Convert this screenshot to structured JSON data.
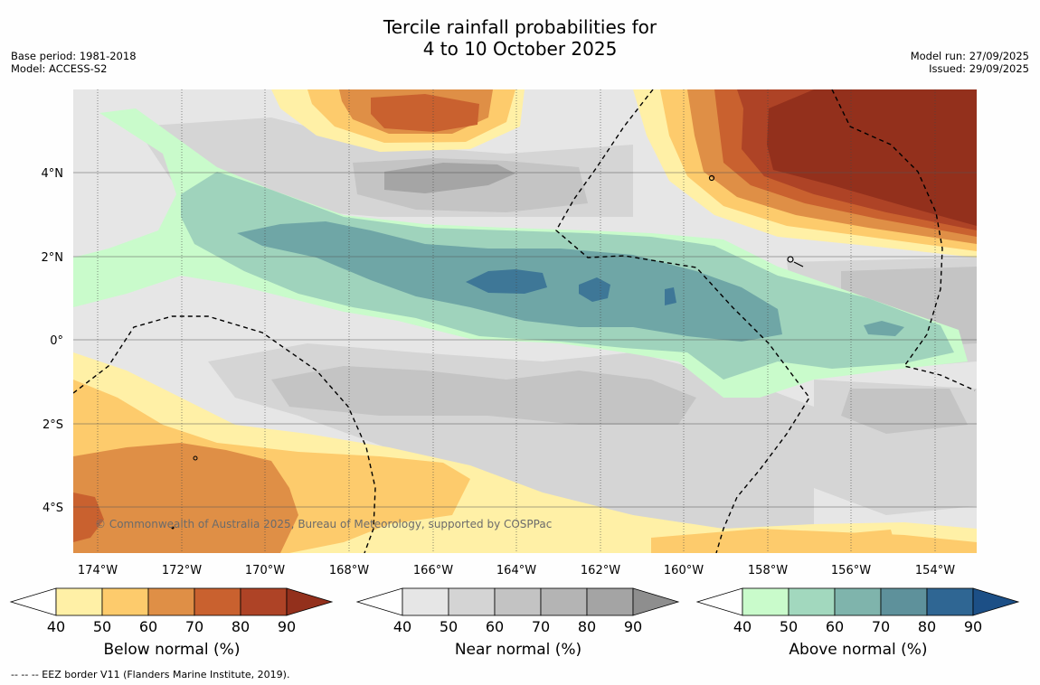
{
  "title_line1": "Tercile rainfall probabilities for",
  "title_line2": "4 to 10 October 2025",
  "base_period": "Base period: 1981-2018",
  "model": "Model: ACCESS-S2",
  "model_run": "Model run: 27/09/2025",
  "issued": "Issued: 29/09/2025",
  "copyright": "© Commonwealth of Australia 2025, Bureau of Meteorology, supported by COSPPac",
  "footnote": "--  --  -- EEZ border V11 (Flanders Marine Institute, 2019).",
  "x_ticks": [
    "174°W",
    "172°W",
    "170°W",
    "168°W",
    "166°W",
    "164°W",
    "162°W",
    "160°W",
    "158°W",
    "156°W",
    "154°W"
  ],
  "y_ticks": [
    "4°N",
    "2°N",
    "0°",
    "2°S",
    "4°S"
  ],
  "colorbars": [
    {
      "caption": "Below normal (%)",
      "ticks": [
        "40",
        "50",
        "60",
        "70",
        "80",
        "90"
      ],
      "colors": [
        "#fff0a6",
        "#fdcb6c",
        "#df8f46",
        "#c9612f",
        "#ae4326",
        "#93301c"
      ]
    },
    {
      "caption": "Near normal (%)",
      "ticks": [
        "40",
        "50",
        "60",
        "70",
        "80",
        "90"
      ],
      "colors": [
        "#e6e6e6",
        "#d4d4d4",
        "#c3c3c3",
        "#b4b4b4",
        "#a4a4a4",
        "#8e8e8e"
      ]
    },
    {
      "caption": "Above normal (%)",
      "ticks": [
        "40",
        "50",
        "60",
        "70",
        "80",
        "90"
      ],
      "colors": [
        "#c9fbcb",
        "#a2d8be",
        "#7fb4ac",
        "#5e919b",
        "#2f6693",
        "#1c4f86"
      ]
    }
  ],
  "map_colors": {
    "near_40": "#e6e6e6",
    "near_50": "#d5d5d5",
    "near_60": "#c4c4c4",
    "near_80": "#a5a5a5",
    "above_40": "#c9fbcb",
    "above_50": "#9fd3bc",
    "above_60": "#6fa6a6",
    "above_70": "#3e7797",
    "below_40": "#fff0a6",
    "below_50": "#fdcb6c",
    "below_60": "#df8f46",
    "below_70": "#c9612f",
    "below_80": "#ae4326",
    "below_90": "#93301c"
  }
}
